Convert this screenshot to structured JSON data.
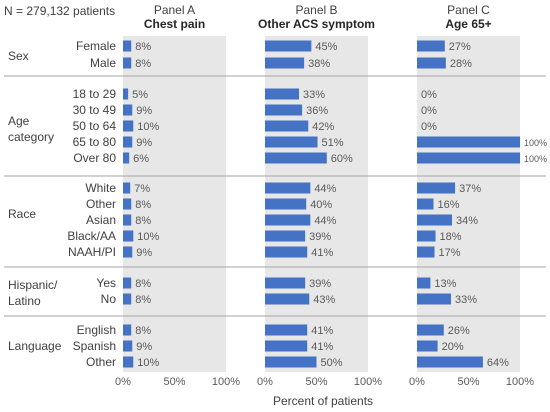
{
  "chart_data": {
    "type": "bar",
    "orientation": "horizontal",
    "note": "N = 279,132 patients",
    "xlabel": "Percent of patients",
    "xlim": [
      0,
      100
    ],
    "xticks": [
      "0%",
      "50%",
      "100%"
    ],
    "panels": [
      {
        "label": "Panel A",
        "title": "Chest pain"
      },
      {
        "label": "Panel B",
        "title": "Other ACS symptom"
      },
      {
        "label": "Panel C",
        "title": "Age 65+"
      }
    ],
    "groups": [
      {
        "name": "Sex",
        "categories": [
          "Female",
          "Male"
        ]
      },
      {
        "name": "Age category",
        "categories": [
          "18 to 29",
          "30 to 49",
          "50 to 64",
          "65 to 80",
          "Over 80"
        ]
      },
      {
        "name": "Race",
        "categories": [
          "White",
          "Other",
          "Asian",
          "Black/AA",
          "NAAH/PI"
        ]
      },
      {
        "name": "Hispanic/ Latino",
        "categories": [
          "Yes",
          "No"
        ]
      },
      {
        "name": "Language",
        "categories": [
          "English",
          "Spanish",
          "Other"
        ]
      }
    ],
    "series": [
      {
        "name": "Chest pain",
        "values": [
          8,
          8,
          5,
          9,
          10,
          9,
          6,
          7,
          8,
          8,
          10,
          9,
          8,
          8,
          8,
          9,
          10
        ]
      },
      {
        "name": "Other ACS symptom",
        "values": [
          45,
          38,
          33,
          36,
          42,
          51,
          60,
          44,
          40,
          44,
          39,
          41,
          39,
          43,
          41,
          41,
          50
        ]
      },
      {
        "name": "Age 65+",
        "values": [
          27,
          28,
          0,
          0,
          0,
          100,
          100,
          37,
          16,
          34,
          18,
          17,
          13,
          33,
          26,
          20,
          64
        ]
      }
    ],
    "bar_color": "#4472c4",
    "panel_bg_color": "#e7e7e7"
  }
}
